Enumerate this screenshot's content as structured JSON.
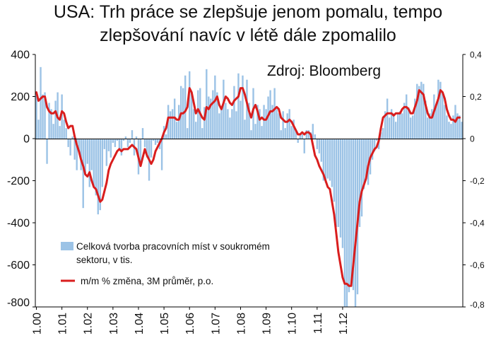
{
  "chart_data": {
    "type": "bar",
    "title": "USA: Trh práce se zlepšuje jenom pomalu, tempo zlepšování navíc v létě dále zpomalilo",
    "title_lines": [
      "USA: Trh práce se zlepšuje jenom pomalu, tempo",
      "zlepšování navíc v létě dále zpomalilo"
    ],
    "source": "Zdroj: Bloomberg",
    "x_tick_labels": [
      "1.00",
      "1.01",
      "1.02",
      "1.03",
      "1.04",
      "1.05",
      "1.06",
      "1.07",
      "1.08",
      "1.09",
      "1.10",
      "1.11",
      "1.12"
    ],
    "x_start": "2000-01",
    "x_end": "2012-08",
    "y_left": {
      "min": -800,
      "max": 400,
      "ticks": [
        "400",
        "200",
        "0",
        "-200",
        "-400",
        "-600",
        "-800"
      ]
    },
    "y_right": {
      "min": -0.8,
      "max": 0.4,
      "ticks": [
        "0,4",
        "0,2",
        "0",
        "-0,2",
        "-0,4",
        "-0,6",
        "-0,8"
      ]
    },
    "grid": false,
    "legend_position": "bottom-left",
    "series": [
      {
        "name": "Celková tvorba pracovních míst v soukromém sektoru, v tis.",
        "name_lines": [
          "Celková tvorba pracovních míst v soukromém",
          "sektoru, v tis."
        ],
        "type": "bar",
        "axis": "left",
        "color": "#9cc3e6",
        "values": [
          220,
          90,
          340,
          210,
          220,
          -120,
          170,
          140,
          70,
          180,
          220,
          60,
          210,
          90,
          50,
          -40,
          -80,
          10,
          -100,
          -150,
          -60,
          -150,
          -330,
          -170,
          -120,
          -230,
          -150,
          -230,
          -270,
          -360,
          -340,
          -230,
          -50,
          -130,
          -60,
          -90,
          -20,
          -40,
          -10,
          -50,
          -80,
          -10,
          10,
          -40,
          -20,
          40,
          -80,
          10,
          -170,
          -130,
          50,
          -40,
          -90,
          -200,
          -90,
          -10,
          -30,
          -20,
          -50,
          -150,
          60,
          20,
          160,
          130,
          140,
          190,
          80,
          160,
          250,
          240,
          300,
          50,
          320,
          220,
          140,
          80,
          230,
          240,
          50,
          150,
          330,
          200,
          190,
          230,
          300,
          220,
          120,
          150,
          280,
          170,
          140,
          100,
          140,
          250,
          130,
          310,
          180,
          300,
          90,
          280,
          170,
          40,
          240,
          70,
          160,
          140,
          60,
          160,
          140,
          200,
          230,
          160,
          240,
          140,
          120,
          40,
          130,
          50,
          120,
          140,
          60,
          90,
          40,
          -20,
          20,
          20,
          -70,
          40,
          40,
          30,
          70,
          20,
          -50,
          -70,
          -110,
          -200,
          -210,
          -190,
          -200,
          -230,
          -300,
          -420,
          -420,
          -470,
          -520,
          -800,
          -800,
          -730,
          -700,
          -720,
          -800,
          -740,
          -420,
          -370,
          -240,
          -180,
          -220,
          -170,
          -100,
          -60,
          -10,
          -50,
          30,
          50,
          130,
          190,
          100,
          140,
          120,
          80,
          120,
          130,
          120,
          170,
          210,
          150,
          100,
          110,
          190,
          260,
          250,
          270,
          260,
          180,
          100,
          120,
          140,
          210,
          160,
          280,
          270,
          220,
          160,
          110,
          80,
          70,
          110,
          160,
          120,
          110,
          80
        ]
      },
      {
        "name": "m/m % změna, 3M průměr, p.o.",
        "type": "line",
        "axis": "right",
        "color": "#d91e1e",
        "values": [
          0.22,
          0.18,
          0.19,
          0.2,
          0.2,
          0.15,
          0.13,
          0.12,
          0.12,
          0.13,
          0.1,
          0.09,
          0.13,
          0.12,
          0.08,
          0.05,
          0.06,
          0.06,
          0.01,
          -0.03,
          -0.06,
          -0.1,
          -0.13,
          -0.17,
          -0.18,
          -0.16,
          -0.2,
          -0.23,
          -0.24,
          -0.27,
          -0.3,
          -0.29,
          -0.25,
          -0.21,
          -0.15,
          -0.12,
          -0.1,
          -0.08,
          -0.06,
          -0.05,
          -0.06,
          -0.05,
          -0.05,
          -0.05,
          -0.04,
          -0.03,
          -0.04,
          -0.05,
          -0.09,
          -0.13,
          -0.09,
          -0.05,
          -0.08,
          -0.1,
          -0.12,
          -0.1,
          -0.06,
          -0.04,
          -0.02,
          0.0,
          0.03,
          0.05,
          0.1,
          0.1,
          0.1,
          0.1,
          0.09,
          0.09,
          0.12,
          0.12,
          0.13,
          0.15,
          0.24,
          0.22,
          0.17,
          0.12,
          0.14,
          0.12,
          0.1,
          0.09,
          0.15,
          0.14,
          0.16,
          0.17,
          0.18,
          0.2,
          0.16,
          0.14,
          0.17,
          0.2,
          0.19,
          0.17,
          0.16,
          0.18,
          0.19,
          0.2,
          0.24,
          0.24,
          0.21,
          0.17,
          0.13,
          0.1,
          0.14,
          0.16,
          0.13,
          0.09,
          0.1,
          0.09,
          0.09,
          0.11,
          0.13,
          0.13,
          0.14,
          0.15,
          0.14,
          0.1,
          0.09,
          0.08,
          0.08,
          0.09,
          0.08,
          0.06,
          0.04,
          0.02,
          0.02,
          0.03,
          0.02,
          0.03,
          0.03,
          0.02,
          -0.03,
          -0.08,
          -0.1,
          -0.13,
          -0.15,
          -0.17,
          -0.2,
          -0.23,
          -0.24,
          -0.3,
          -0.36,
          -0.45,
          -0.54,
          -0.6,
          -0.66,
          -0.69,
          -0.69,
          -0.7,
          -0.7,
          -0.6,
          -0.5,
          -0.4,
          -0.3,
          -0.25,
          -0.22,
          -0.19,
          -0.13,
          -0.09,
          -0.07,
          -0.05,
          -0.04,
          -0.01,
          0.05,
          0.1,
          0.11,
          0.12,
          0.12,
          0.12,
          0.11,
          0.12,
          0.12,
          0.12,
          0.14,
          0.15,
          0.15,
          0.14,
          0.12,
          0.12,
          0.15,
          0.18,
          0.23,
          0.22,
          0.21,
          0.16,
          0.12,
          0.1,
          0.1,
          0.13,
          0.16,
          0.19,
          0.23,
          0.22,
          0.19,
          0.14,
          0.11,
          0.09,
          0.09,
          0.08,
          0.1,
          0.1
        ]
      }
    ]
  }
}
